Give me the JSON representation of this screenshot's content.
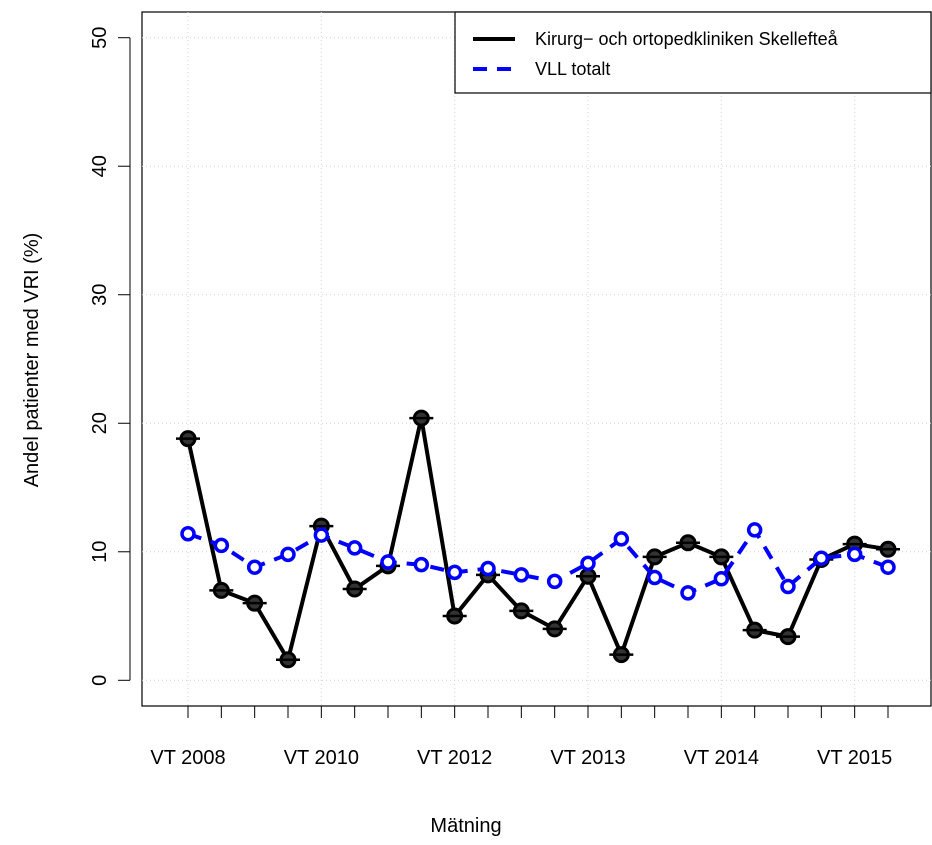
{
  "chart_data": {
    "type": "line",
    "x_label": "Mätning",
    "y_label": "Andel patienter med VRI (%)",
    "categories": [
      "VT 2008",
      null,
      null,
      null,
      "VT 2010",
      null,
      null,
      null,
      "VT 2012",
      null,
      null,
      null,
      "VT 2013",
      null,
      null,
      null,
      "VT 2014",
      null,
      null,
      null,
      "VT 2015",
      null
    ],
    "series": [
      {
        "name": "Kirurg− och ortopedkliniken Skellefteå",
        "color": "#000000",
        "values": [
          18.8,
          7.0,
          6.0,
          1.6,
          12.0,
          7.1,
          8.9,
          20.4,
          5.0,
          8.2,
          5.4,
          4.0,
          8.1,
          2.0,
          9.6,
          10.7,
          9.6,
          3.9,
          3.4,
          9.4,
          10.6,
          10.2
        ]
      },
      {
        "name": "VLL totalt",
        "color": "#0000ff",
        "values": [
          11.4,
          10.5,
          8.8,
          9.8,
          11.3,
          10.3,
          9.2,
          9.0,
          8.4,
          8.7,
          8.2,
          7.7,
          9.1,
          11.0,
          8.0,
          6.8,
          7.9,
          11.7,
          7.3,
          9.5,
          9.8,
          8.8
        ]
      }
    ],
    "ylim": [
      -2,
      52
    ],
    "yticks": [
      0,
      10,
      20,
      30,
      40,
      50
    ],
    "grid": true,
    "legend": "top-right"
  }
}
